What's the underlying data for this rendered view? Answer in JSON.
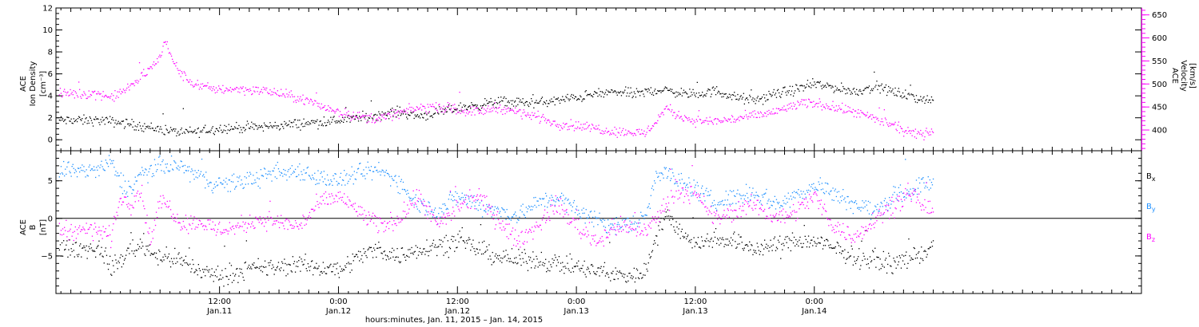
{
  "chart_data": [
    {
      "panel": "top",
      "type": "scatter",
      "left_axis": {
        "label_lines": [
          "ACE",
          "Ion Density"
        ],
        "unit": "[cm⁻³]",
        "ylim": [
          -1,
          12
        ],
        "ticks": [
          0,
          2,
          4,
          6,
          8,
          10,
          12
        ]
      },
      "right_axis": {
        "label_lines": [
          "ACE",
          "Velocity"
        ],
        "unit": "[km/s]",
        "ylim": [
          355,
          665
        ],
        "ticks": [
          400,
          450,
          500,
          550,
          600,
          650
        ],
        "color": "#ff00ff"
      },
      "series": [
        {
          "name": "Ion Density",
          "color": "#000000",
          "axis": "left",
          "anchors": [
            [
              0,
              1.8
            ],
            [
              2,
              1.6
            ],
            [
              4,
              1.3
            ],
            [
              6,
              1.0
            ],
            [
              8,
              0.7
            ],
            [
              10,
              0.8
            ],
            [
              12,
              1.1
            ],
            [
              16,
              1.2
            ],
            [
              20,
              1.5
            ],
            [
              24,
              1.8
            ],
            [
              28,
              2.3
            ],
            [
              30,
              2.6
            ],
            [
              32,
              2.2
            ],
            [
              34,
              2.5
            ],
            [
              36,
              2.9
            ],
            [
              38,
              3.2
            ],
            [
              40,
              3.5
            ],
            [
              44,
              3.4
            ],
            [
              46,
              3.6
            ],
            [
              48,
              3.9
            ],
            [
              50,
              4.2
            ],
            [
              52,
              4.4
            ],
            [
              54,
              4.2
            ],
            [
              56,
              4.6
            ],
            [
              58,
              4.4
            ],
            [
              60,
              4.1
            ],
            [
              62,
              4.5
            ],
            [
              64,
              3.9
            ],
            [
              66,
              3.6
            ],
            [
              68,
              4.2
            ],
            [
              70,
              4.6
            ],
            [
              72,
              5.1
            ],
            [
              74,
              4.8
            ],
            [
              76,
              4.4
            ],
            [
              78,
              4.9
            ],
            [
              80,
              4.4
            ],
            [
              82,
              3.9
            ],
            [
              84,
              3.6
            ]
          ]
        },
        {
          "name": "Velocity",
          "color": "#ff00ff",
          "axis": "right",
          "anchors": [
            [
              0,
              480
            ],
            [
              1,
              470
            ],
            [
              3,
              495
            ],
            [
              5,
              535
            ],
            [
              6,
              560
            ],
            [
              6.5,
              600
            ],
            [
              7,
              560
            ],
            [
              8,
              525
            ],
            [
              9,
              505
            ],
            [
              11,
              490
            ],
            [
              14,
              490
            ],
            [
              17,
              485
            ],
            [
              20,
              470
            ],
            [
              22,
              455
            ],
            [
              24,
              440
            ],
            [
              26,
              430
            ],
            [
              28,
              425
            ],
            [
              30,
              438
            ],
            [
              32,
              448
            ],
            [
              34,
              452
            ],
            [
              36,
              445
            ],
            [
              38,
              440
            ],
            [
              40,
              450
            ],
            [
              42,
              440
            ],
            [
              44,
              430
            ],
            [
              46,
              415
            ],
            [
              48,
              410
            ],
            [
              50,
              405
            ],
            [
              51,
              400
            ],
            [
              52,
              398
            ],
            [
              54,
              395
            ],
            [
              55,
              395
            ],
            [
              56,
              420
            ],
            [
              57,
              450
            ],
            [
              58,
              435
            ],
            [
              60,
              420
            ],
            [
              62,
              420
            ],
            [
              64,
              425
            ],
            [
              66,
              432
            ],
            [
              68,
              440
            ],
            [
              70,
              455
            ],
            [
              72,
              460
            ],
            [
              74,
              450
            ],
            [
              76,
              440
            ],
            [
              78,
              425
            ],
            [
              80,
              410
            ],
            [
              81,
              400
            ],
            [
              82,
              390
            ],
            [
              83,
              395
            ],
            [
              84,
              400
            ]
          ]
        }
      ]
    },
    {
      "panel": "bottom",
      "type": "scatter",
      "left_axis": {
        "label_lines": [
          "ACE",
          "B"
        ],
        "unit": "[nT]",
        "ylim": [
          -10,
          9
        ],
        "ticks": [
          -5,
          0,
          5
        ],
        "tick_labels": [
          "−5",
          "0",
          "5"
        ]
      },
      "zero_line": true,
      "series": [
        {
          "name": "Bₓ",
          "color": "#000000",
          "anchors": [
            [
              0,
              -4.0
            ],
            [
              1,
              -6.5
            ],
            [
              2,
              -5.5
            ],
            [
              3,
              -4.0
            ],
            [
              4,
              -3.5
            ],
            [
              6,
              -5.0
            ],
            [
              8,
              -5.5
            ],
            [
              10,
              -7.0
            ],
            [
              12,
              -7.5
            ],
            [
              14,
              -7.0
            ],
            [
              16,
              -6.5
            ],
            [
              18,
              -6.5
            ],
            [
              20,
              -6.0
            ],
            [
              22,
              -6.5
            ],
            [
              24,
              -6.8
            ],
            [
              26,
              -5.0
            ],
            [
              28,
              -4.0
            ],
            [
              30,
              -5.0
            ],
            [
              32,
              -4.0
            ],
            [
              34,
              -3.5
            ],
            [
              36,
              -3.0
            ],
            [
              38,
              -4.0
            ],
            [
              40,
              -5.0
            ],
            [
              42,
              -5.5
            ],
            [
              44,
              -5.5
            ],
            [
              46,
              -6.0
            ],
            [
              48,
              -6.5
            ],
            [
              50,
              -7.0
            ],
            [
              52,
              -7.5
            ],
            [
              54,
              -7.5
            ],
            [
              55,
              -7.0
            ],
            [
              56,
              -2.0
            ],
            [
              57,
              0.5
            ],
            [
              58,
              -1.0
            ],
            [
              60,
              -3.5
            ],
            [
              62,
              -2.5
            ],
            [
              64,
              -3.0
            ],
            [
              66,
              -4.0
            ],
            [
              68,
              -3.5
            ],
            [
              70,
              -3.0
            ],
            [
              72,
              -3.0
            ],
            [
              74,
              -4.0
            ],
            [
              76,
              -5.0
            ],
            [
              78,
              -5.5
            ],
            [
              80,
              -6.0
            ],
            [
              82,
              -5.0
            ],
            [
              84,
              -4.0
            ]
          ]
        },
        {
          "name": "Bᵧ",
          "color": "#1e90ff",
          "anchors": [
            [
              0,
              6.5
            ],
            [
              1,
              7.5
            ],
            [
              2,
              5.0
            ],
            [
              3,
              4.0
            ],
            [
              4,
              6.0
            ],
            [
              5,
              6.5
            ],
            [
              6,
              7.0
            ],
            [
              8,
              7.0
            ],
            [
              10,
              5.5
            ],
            [
              12,
              4.5
            ],
            [
              14,
              5.0
            ],
            [
              16,
              5.5
            ],
            [
              18,
              6.0
            ],
            [
              20,
              6.5
            ],
            [
              22,
              5.5
            ],
            [
              24,
              5.0
            ],
            [
              26,
              6.0
            ],
            [
              28,
              6.5
            ],
            [
              30,
              5.0
            ],
            [
              32,
              2.0
            ],
            [
              34,
              1.0
            ],
            [
              36,
              3.0
            ],
            [
              38,
              2.0
            ],
            [
              40,
              1.0
            ],
            [
              42,
              0.5
            ],
            [
              44,
              2.0
            ],
            [
              46,
              3.0
            ],
            [
              48,
              1.0
            ],
            [
              50,
              0.0
            ],
            [
              52,
              -1.0
            ],
            [
              54,
              -0.5
            ],
            [
              55,
              0.5
            ],
            [
              56,
              6.0
            ],
            [
              57,
              6.5
            ],
            [
              58,
              5.0
            ],
            [
              60,
              4.0
            ],
            [
              62,
              2.0
            ],
            [
              64,
              3.0
            ],
            [
              66,
              3.5
            ],
            [
              68,
              2.0
            ],
            [
              70,
              3.0
            ],
            [
              72,
              4.5
            ],
            [
              74,
              3.5
            ],
            [
              76,
              2.0
            ],
            [
              78,
              1.0
            ],
            [
              80,
              3.0
            ],
            [
              82,
              4.0
            ],
            [
              84,
              5.0
            ]
          ]
        },
        {
          "name": "B_z",
          "color": "#ff00ff",
          "anchors": [
            [
              0,
              -1.5
            ],
            [
              1,
              -2.5
            ],
            [
              2,
              3.0
            ],
            [
              3,
              2.0
            ],
            [
              4,
              4.0
            ],
            [
              5,
              -3.0
            ],
            [
              6,
              2.5
            ],
            [
              7,
              1.5
            ],
            [
              8,
              -0.5
            ],
            [
              10,
              -0.5
            ],
            [
              12,
              -1.5
            ],
            [
              14,
              -1.0
            ],
            [
              16,
              0.0
            ],
            [
              18,
              -0.5
            ],
            [
              20,
              -1.0
            ],
            [
              22,
              2.0
            ],
            [
              24,
              3.0
            ],
            [
              26,
              1.0
            ],
            [
              28,
              -1.0
            ],
            [
              30,
              0.0
            ],
            [
              32,
              3.0
            ],
            [
              34,
              -1.0
            ],
            [
              36,
              1.5
            ],
            [
              38,
              3.0
            ],
            [
              40,
              0.0
            ],
            [
              42,
              -3.0
            ],
            [
              44,
              -1.0
            ],
            [
              46,
              2.0
            ],
            [
              48,
              -1.0
            ],
            [
              50,
              -3.0
            ],
            [
              52,
              -1.0
            ],
            [
              54,
              -1.5
            ],
            [
              55,
              -1.5
            ],
            [
              56,
              0.0
            ],
            [
              57,
              2.0
            ],
            [
              58,
              4.0
            ],
            [
              60,
              3.0
            ],
            [
              62,
              0.0
            ],
            [
              64,
              1.0
            ],
            [
              66,
              2.0
            ],
            [
              68,
              0.0
            ],
            [
              70,
              1.0
            ],
            [
              72,
              3.0
            ],
            [
              74,
              -1.0
            ],
            [
              76,
              -2.5
            ],
            [
              78,
              0.0
            ],
            [
              80,
              2.0
            ],
            [
              82,
              3.0
            ],
            [
              84,
              0.5
            ]
          ]
        }
      ]
    }
  ],
  "x_axis": {
    "xlim_hours": [
      -4.5,
      105
    ],
    "major_ticks": [
      {
        "hour": 12,
        "time": "12:00",
        "date": "Jan.11"
      },
      {
        "hour": 24,
        "time": "0:00",
        "date": "Jan.12"
      },
      {
        "hour": 36,
        "time": "12:00",
        "date": "Jan.12"
      },
      {
        "hour": 48,
        "time": "0:00",
        "date": "Jan.13"
      },
      {
        "hour": 60,
        "time": "12:00",
        "date": "Jan.13"
      },
      {
        "hour": 72,
        "time": "0:00",
        "date": "Jan.14"
      }
    ],
    "minor_tick_every_hours": 1,
    "title": "hours:minutes, Jan. 11, 2015 – Jan. 14, 2015"
  },
  "legend": {
    "items": [
      {
        "base": "B",
        "sub": "x",
        "color": "#000000"
      },
      {
        "base": "B",
        "sub": "y",
        "color": "#1e90ff"
      },
      {
        "base": "B",
        "sub": "z",
        "color": "#ff00ff"
      }
    ]
  }
}
